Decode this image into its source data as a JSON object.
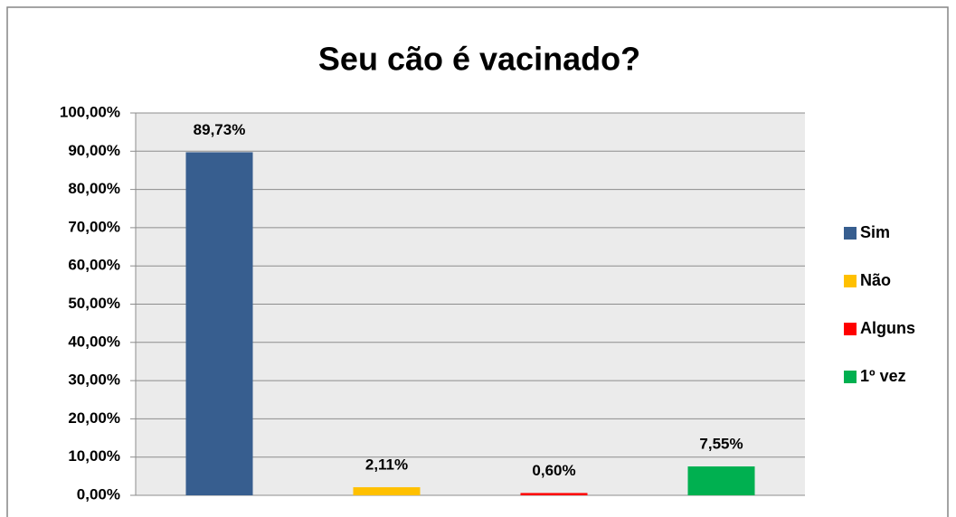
{
  "chart_data": {
    "type": "bar",
    "title": "Seu cão é vacinado?",
    "categories": [
      null
    ],
    "series": [
      {
        "name": "Sim",
        "color": "#375e8f",
        "values": [
          89.73
        ],
        "value_labels": [
          "89,73%"
        ]
      },
      {
        "name": "Não",
        "color": "#ffc000",
        "values": [
          2.11
        ],
        "value_labels": [
          "2,11%"
        ]
      },
      {
        "name": "Alguns",
        "color": "#ff0000",
        "values": [
          0.6
        ],
        "value_labels": [
          "0,60%"
        ]
      },
      {
        "name": "1º vez",
        "color": "#00b050",
        "values": [
          7.55
        ],
        "value_labels": [
          "7,55%"
        ]
      }
    ],
    "ylim": [
      0,
      100
    ],
    "yticks": [
      {
        "value": 0,
        "label": "0,00%"
      },
      {
        "value": 10,
        "label": "10,00%"
      },
      {
        "value": 20,
        "label": "20,00%"
      },
      {
        "value": 30,
        "label": "30,00%"
      },
      {
        "value": 40,
        "label": "40,00%"
      },
      {
        "value": 50,
        "label": "50,00%"
      },
      {
        "value": 60,
        "label": "60,00%"
      },
      {
        "value": 70,
        "label": "70,00%"
      },
      {
        "value": 80,
        "label": "80,00%"
      },
      {
        "value": 90,
        "label": "90,00%"
      },
      {
        "value": 100,
        "label": "100,00%"
      }
    ],
    "grid": true,
    "legend": "right"
  }
}
